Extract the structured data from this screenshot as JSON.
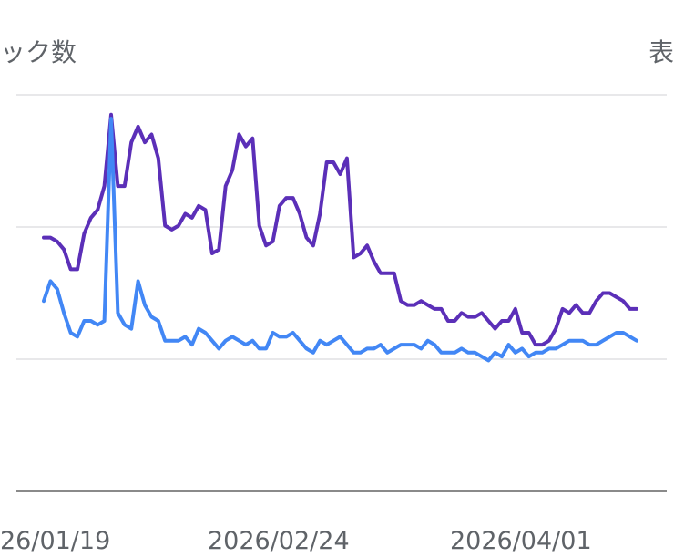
{
  "chart_data": {
    "type": "line",
    "left_title": "ック数",
    "right_title": "表",
    "x_tick_labels": [
      "26/01/19",
      "2026/02/24",
      "2026/04/01"
    ],
    "grid": true,
    "series": [
      {
        "color": "#5b2fb8",
        "values": [
          64,
          64,
          63,
          61,
          56,
          56,
          65,
          69,
          71,
          77,
          95,
          77,
          77,
          88,
          92,
          88,
          90,
          84,
          67,
          66,
          67,
          70,
          69,
          72,
          71,
          60,
          61,
          77,
          81,
          90,
          87,
          89,
          67,
          62,
          63,
          72,
          74,
          74,
          70,
          64,
          62,
          70,
          83,
          83,
          80,
          84,
          59,
          60,
          62,
          58,
          55,
          55,
          55,
          48,
          47,
          47,
          48,
          47,
          46,
          46,
          43,
          43,
          45,
          44,
          44,
          45,
          43,
          41,
          43,
          43,
          46,
          40,
          40,
          37,
          37,
          38,
          41,
          46,
          45,
          47,
          45,
          45,
          48,
          50,
          50,
          49,
          48,
          46,
          46
        ]
      },
      {
        "color": "#4287f5",
        "values": [
          48,
          53,
          51,
          45,
          40,
          39,
          43,
          43,
          42,
          43,
          94,
          45,
          42,
          41,
          53,
          47,
          44,
          43,
          38,
          38,
          38,
          39,
          37,
          41,
          40,
          38,
          36,
          38,
          39,
          38,
          37,
          38,
          36,
          36,
          40,
          39,
          39,
          40,
          38,
          36,
          35,
          38,
          37,
          38,
          39,
          37,
          35,
          35,
          36,
          36,
          37,
          35,
          36,
          37,
          37,
          37,
          36,
          38,
          37,
          35,
          35,
          35,
          36,
          35,
          35,
          34,
          33,
          35,
          34,
          37,
          35,
          36,
          34,
          35,
          35,
          36,
          36,
          37,
          38,
          38,
          38,
          37,
          37,
          38,
          39,
          40,
          40,
          39,
          38
        ]
      }
    ]
  }
}
